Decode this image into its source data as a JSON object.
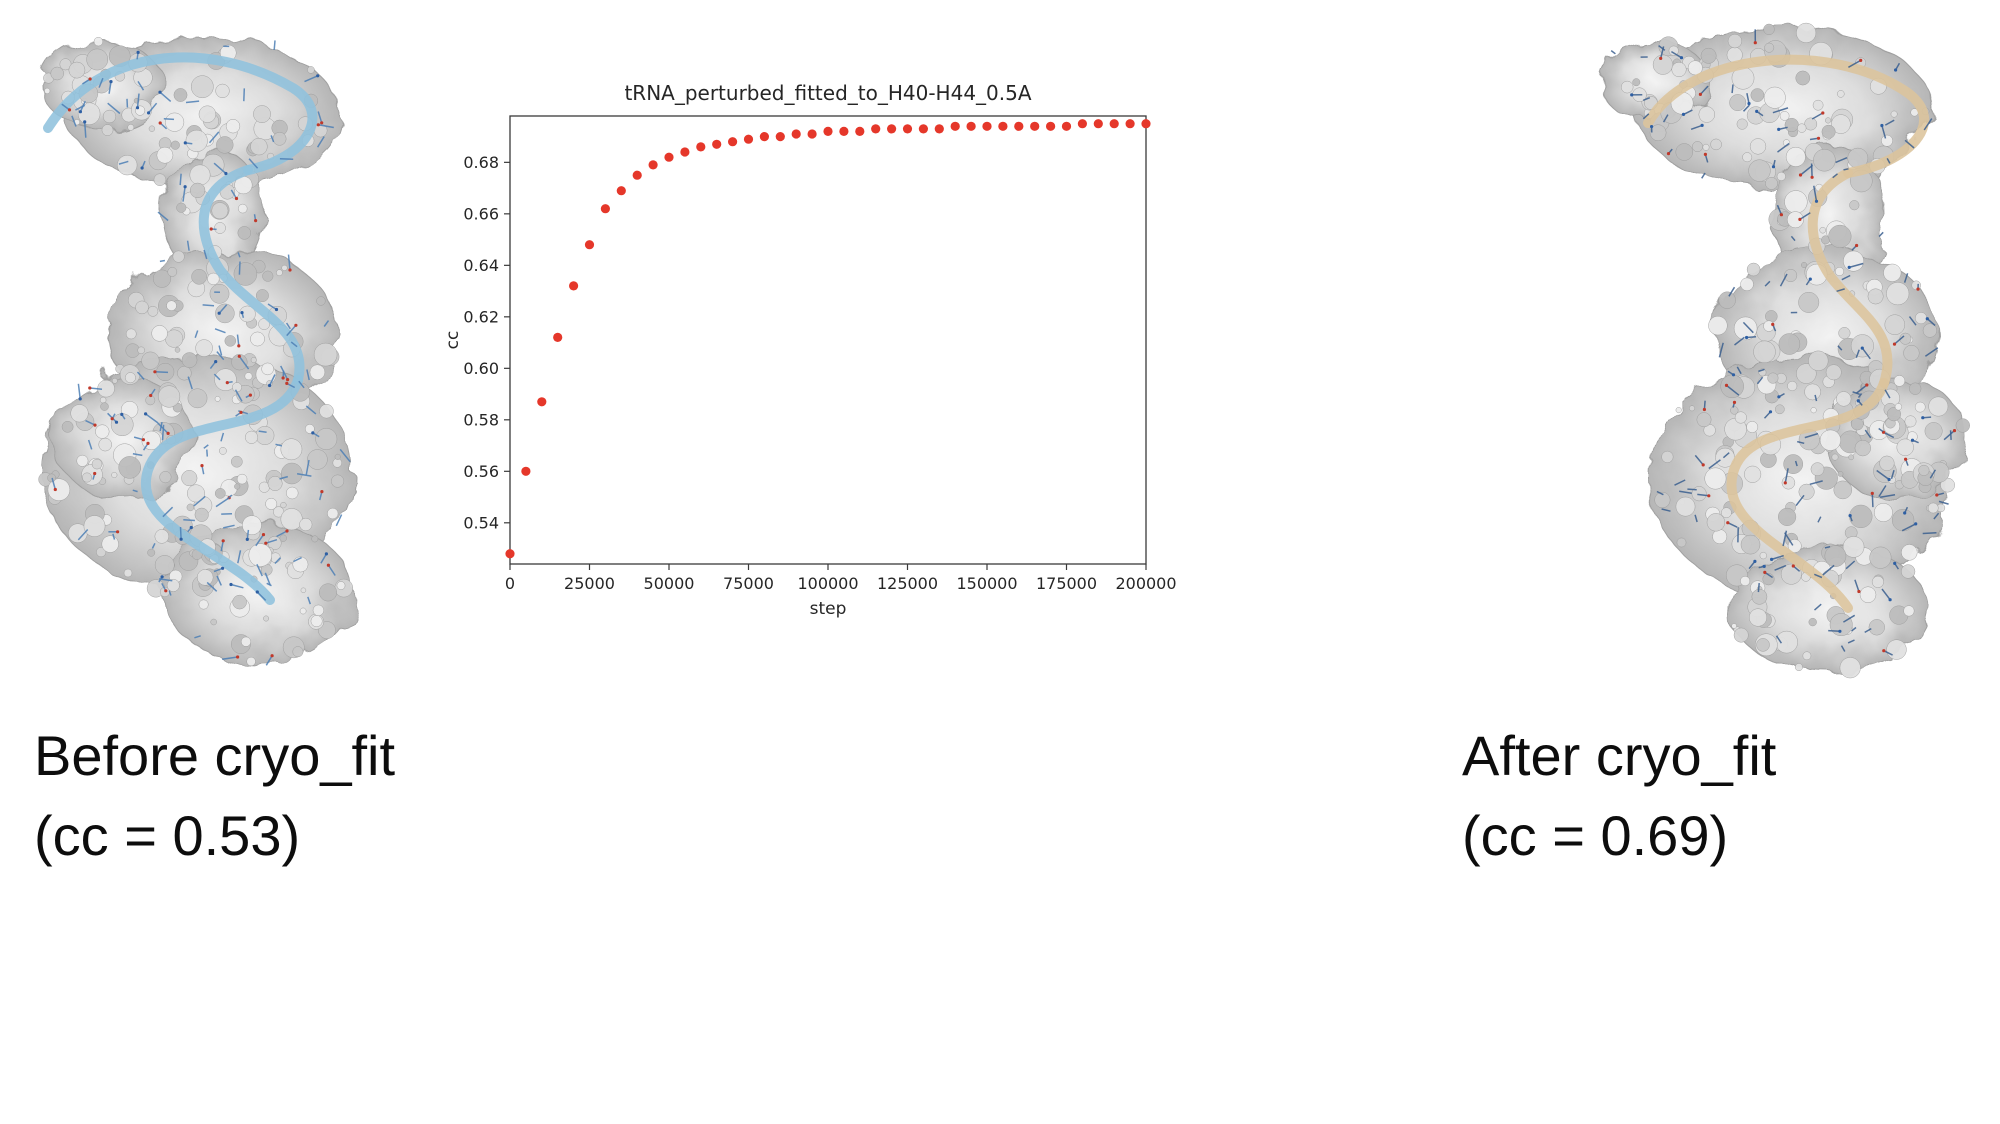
{
  "figure": {
    "before": {
      "caption_line1": "Before cryo_fit",
      "caption_line2": "(cc = 0.53)",
      "ribbon_color": "#8fc1dd",
      "stick_color": "#4d7fb5"
    },
    "after": {
      "caption_line1": "After cryo_fit",
      "caption_line2": "(cc = 0.69)",
      "ribbon_color": "#dcc49c",
      "stick_color": "#3a5f8f"
    }
  },
  "chart_data": {
    "type": "scatter",
    "title": "tRNA_perturbed_fitted_to_H40-H44_0.5A",
    "xlabel": "step",
    "ylabel": "cc",
    "xlim": [
      0,
      200000
    ],
    "ylim": [
      0.524,
      0.698
    ],
    "xticks": [
      0,
      25000,
      50000,
      75000,
      100000,
      125000,
      150000,
      175000,
      200000
    ],
    "xtick_labels": [
      "0",
      "25000",
      "50000",
      "75000",
      "100000",
      "125000",
      "150000",
      "175000",
      "200000"
    ],
    "yticks": [
      0.54,
      0.56,
      0.58,
      0.6,
      0.62,
      0.64,
      0.66,
      0.68
    ],
    "ytick_labels": [
      "0.54",
      "0.56",
      "0.58",
      "0.60",
      "0.62",
      "0.64",
      "0.66",
      "0.68"
    ],
    "grid": false,
    "legend": "none",
    "marker_color": "#e5372a",
    "x": [
      0,
      5000,
      10000,
      15000,
      20000,
      25000,
      30000,
      35000,
      40000,
      45000,
      50000,
      55000,
      60000,
      65000,
      70000,
      75000,
      80000,
      85000,
      90000,
      95000,
      100000,
      105000,
      110000,
      115000,
      120000,
      125000,
      130000,
      135000,
      140000,
      145000,
      150000,
      155000,
      160000,
      165000,
      170000,
      175000,
      180000,
      185000,
      190000,
      195000,
      200000
    ],
    "y": [
      0.528,
      0.56,
      0.587,
      0.612,
      0.632,
      0.648,
      0.662,
      0.669,
      0.675,
      0.679,
      0.682,
      0.684,
      0.686,
      0.687,
      0.688,
      0.689,
      0.69,
      0.69,
      0.691,
      0.691,
      0.692,
      0.692,
      0.692,
      0.693,
      0.693,
      0.693,
      0.693,
      0.693,
      0.694,
      0.694,
      0.694,
      0.694,
      0.694,
      0.694,
      0.694,
      0.694,
      0.695,
      0.695,
      0.695,
      0.695,
      0.695
    ]
  }
}
